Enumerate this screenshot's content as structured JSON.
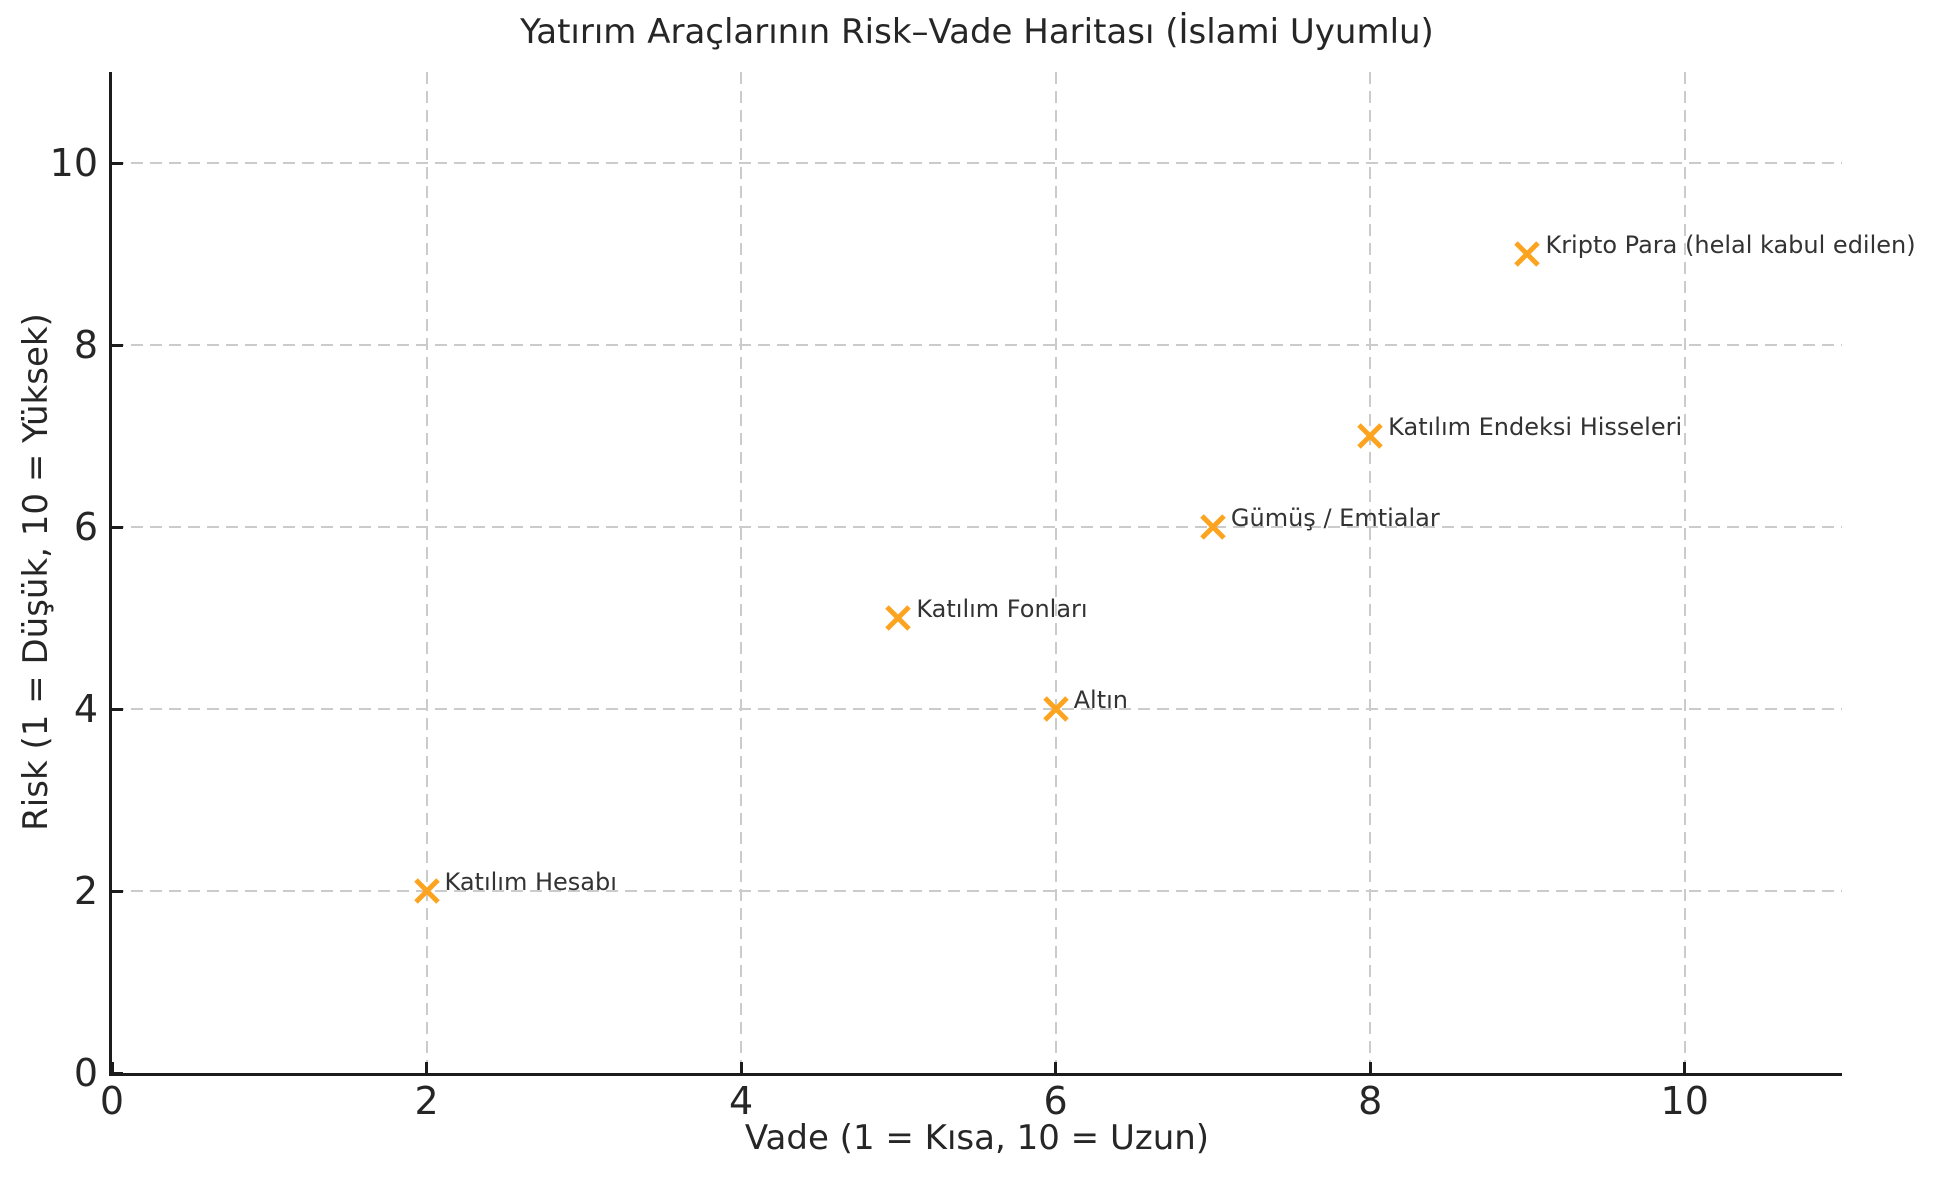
{
  "chart_data": {
    "type": "scatter",
    "title": "Yatırım Araçlarının Risk–Vade Haritası (İslami Uyumlu)",
    "xlabel": "Vade (1 = Kısa, 10 = Uzun)",
    "ylabel": "Risk (1 = Düşük, 10 = Yüksek)",
    "xlim": [
      0,
      11
    ],
    "ylim": [
      0,
      11
    ],
    "xticks": [
      0,
      2,
      4,
      6,
      8,
      10
    ],
    "yticks": [
      0,
      2,
      4,
      6,
      8,
      10
    ],
    "grid": true,
    "grid_linestyle": "dashed",
    "legend_position": "none",
    "marker_symbol": "x",
    "colors": {
      "marker": "#fca41f",
      "grid": "#cbcbcb",
      "spine": "#1c1c1c",
      "text": "#262626",
      "annotation_text": "#333333",
      "background": "#ffffff"
    },
    "points": [
      {
        "label": "Katılım Hesabı",
        "x": 2,
        "y": 2
      },
      {
        "label": "Katılım Fonları",
        "x": 5,
        "y": 5
      },
      {
        "label": "Altın",
        "x": 6,
        "y": 4
      },
      {
        "label": "Gümüş / Emtialar",
        "x": 7,
        "y": 6
      },
      {
        "label": "Katılım Endeksi Hisseleri",
        "x": 8,
        "y": 7
      },
      {
        "label": "Kripto Para (helal kabul edilen)",
        "x": 9,
        "y": 9
      }
    ]
  }
}
